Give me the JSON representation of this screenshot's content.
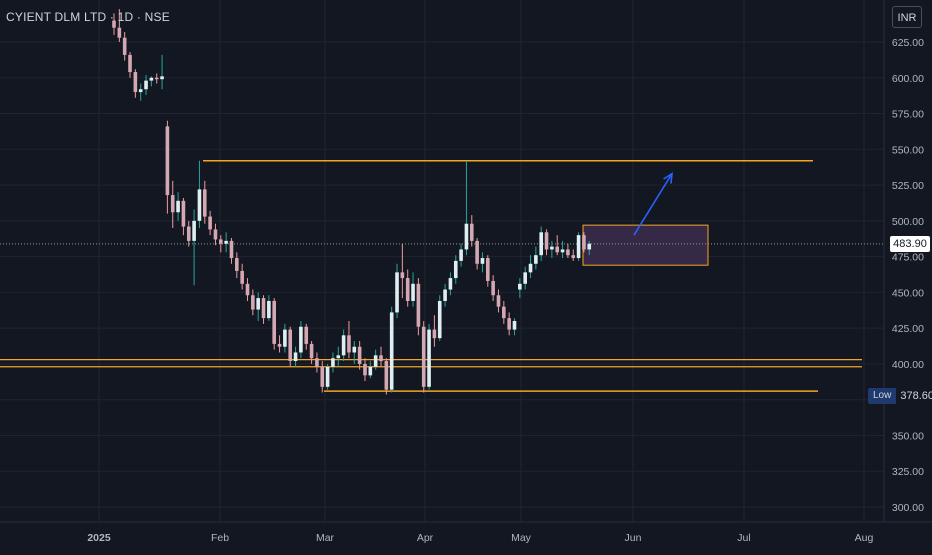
{
  "chart_data": {
    "type": "candlestick",
    "title": "CYIENT DLM LTD · 1D · NSE",
    "currency": "INR",
    "y_ticks": [
      "300.00",
      "325.00",
      "350.00",
      "375.00",
      "400.00",
      "425.00",
      "450.00",
      "475.00",
      "500.00",
      "525.00",
      "550.00",
      "575.00",
      "600.00",
      "625.00"
    ],
    "x_ticks": [
      "2025",
      "Feb",
      "Mar",
      "Apr",
      "May",
      "Jun",
      "Jul",
      "Aug"
    ],
    "last_price": "483.90",
    "low_label": "Low",
    "low_value": "378.60",
    "ylim": [
      290,
      648
    ],
    "grid": true,
    "candles": [
      [
        640,
        645,
        630,
        635
      ],
      [
        635,
        648,
        625,
        628
      ],
      [
        628,
        632,
        612,
        616
      ],
      [
        616,
        618,
        600,
        604
      ],
      [
        604,
        606,
        586,
        590
      ],
      [
        590,
        596,
        584,
        592
      ],
      [
        592,
        602,
        588,
        598
      ],
      [
        598,
        601,
        594,
        600
      ],
      [
        600,
        603,
        596,
        599
      ],
      [
        599,
        616,
        592,
        601
      ],
      [
        566,
        570,
        505,
        518
      ],
      [
        518,
        528,
        495,
        506
      ],
      [
        506,
        520,
        500,
        514
      ],
      [
        514,
        516,
        490,
        496
      ],
      [
        496,
        500,
        482,
        486
      ],
      [
        486,
        508,
        455,
        500
      ],
      [
        500,
        542,
        495,
        522
      ],
      [
        522,
        528,
        498,
        503
      ],
      [
        503,
        507,
        490,
        494
      ],
      [
        494,
        498,
        483,
        487
      ],
      [
        487,
        490,
        478,
        484
      ],
      [
        484,
        492,
        478,
        486
      ],
      [
        486,
        488,
        470,
        474
      ],
      [
        474,
        478,
        460,
        465
      ],
      [
        465,
        470,
        452,
        456
      ],
      [
        456,
        460,
        444,
        448
      ],
      [
        448,
        452,
        434,
        438
      ],
      [
        438,
        450,
        430,
        446
      ],
      [
        446,
        448,
        428,
        432
      ],
      [
        432,
        448,
        430,
        444
      ],
      [
        444,
        446,
        410,
        414
      ],
      [
        414,
        420,
        408,
        412
      ],
      [
        412,
        428,
        408,
        424
      ],
      [
        424,
        426,
        398,
        402
      ],
      [
        402,
        412,
        398,
        408
      ],
      [
        408,
        430,
        404,
        426
      ],
      [
        426,
        428,
        410,
        414
      ],
      [
        414,
        416,
        400,
        404
      ],
      [
        404,
        408,
        394,
        398
      ],
      [
        398,
        402,
        380,
        384
      ],
      [
        384,
        400,
        382,
        398
      ],
      [
        398,
        408,
        394,
        404
      ],
      [
        404,
        412,
        398,
        406
      ],
      [
        406,
        424,
        402,
        420
      ],
      [
        420,
        430,
        404,
        408
      ],
      [
        408,
        416,
        400,
        412
      ],
      [
        412,
        416,
        396,
        400
      ],
      [
        400,
        404,
        388,
        392
      ],
      [
        392,
        402,
        390,
        398
      ],
      [
        398,
        410,
        396,
        406
      ],
      [
        406,
        412,
        398,
        402
      ],
      [
        402,
        404,
        378.6,
        382
      ],
      [
        382,
        440,
        380,
        436
      ],
      [
        436,
        470,
        432,
        464
      ],
      [
        464,
        484,
        446,
        460
      ],
      [
        460,
        466,
        440,
        444
      ],
      [
        444,
        464,
        440,
        456
      ],
      [
        456,
        460,
        420,
        426
      ],
      [
        426,
        430,
        380,
        384
      ],
      [
        384,
        428,
        382,
        424
      ],
      [
        424,
        434,
        412,
        418
      ],
      [
        418,
        448,
        416,
        444
      ],
      [
        444,
        456,
        440,
        452
      ],
      [
        452,
        464,
        448,
        460
      ],
      [
        460,
        476,
        456,
        472
      ],
      [
        472,
        484,
        468,
        480
      ],
      [
        480,
        542,
        476,
        498
      ],
      [
        498,
        504,
        482,
        486
      ],
      [
        486,
        488,
        466,
        470
      ],
      [
        470,
        478,
        464,
        474
      ],
      [
        474,
        476,
        454,
        458
      ],
      [
        458,
        462,
        444,
        448
      ],
      [
        448,
        452,
        436,
        440
      ],
      [
        440,
        444,
        428,
        432
      ],
      [
        432,
        436,
        420,
        424
      ],
      [
        424,
        432,
        420,
        430
      ],
      [
        452,
        460,
        446,
        456
      ],
      [
        456,
        468,
        452,
        464
      ],
      [
        464,
        476,
        460,
        470
      ],
      [
        470,
        482,
        466,
        476
      ],
      [
        476,
        496,
        472,
        492
      ],
      [
        492,
        494,
        476,
        480
      ],
      [
        480,
        486,
        474,
        482
      ],
      [
        482,
        490,
        476,
        478
      ],
      [
        478,
        486,
        474,
        480
      ],
      [
        480,
        484,
        474,
        476
      ],
      [
        476,
        480,
        472,
        474
      ],
      [
        474,
        492,
        472,
        490
      ],
      [
        490,
        492,
        478,
        480
      ],
      [
        480,
        486,
        476,
        484
      ]
    ],
    "annotations": {
      "resistance": 542,
      "support_top": 403,
      "support_bottom": 398,
      "low_line": 381,
      "consolidation": {
        "from": 478,
        "to": 482,
        "low": 469,
        "high": 497
      },
      "arrow": {
        "from_price": 490,
        "to_price": 533
      }
    }
  },
  "colors": {
    "background": "#131722",
    "grid": "#1f2430",
    "candle_up": "#dfeff1",
    "candle_down": "#d4a8b2",
    "wick_up": "#26a69a",
    "wick_down": "#ef9a9a",
    "level_line": "#f5a623",
    "arrow": "#2962ff",
    "box_fill": "#3d2b4d",
    "axis_text": "#b2b5be"
  }
}
